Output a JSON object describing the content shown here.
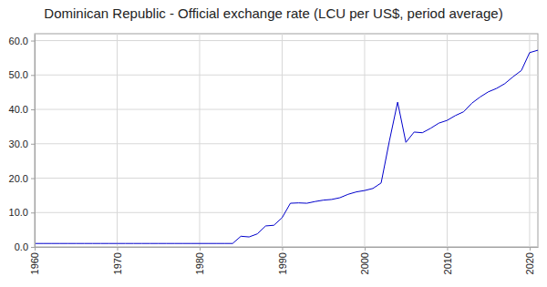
{
  "chart_data": {
    "type": "line",
    "title": "Dominican Republic - Official exchange rate (LCU per US$, period average)",
    "x": [
      1960,
      1961,
      1962,
      1963,
      1964,
      1965,
      1966,
      1967,
      1968,
      1969,
      1970,
      1971,
      1972,
      1973,
      1974,
      1975,
      1976,
      1977,
      1978,
      1979,
      1980,
      1981,
      1982,
      1983,
      1984,
      1985,
      1986,
      1987,
      1988,
      1989,
      1990,
      1991,
      1992,
      1993,
      1994,
      1995,
      1996,
      1997,
      1998,
      1999,
      2000,
      2001,
      2002,
      2003,
      2004,
      2005,
      2006,
      2007,
      2008,
      2009,
      2010,
      2011,
      2012,
      2013,
      2014,
      2015,
      2016,
      2017,
      2018,
      2019,
      2020,
      2021
    ],
    "values": [
      1.0,
      1.0,
      1.0,
      1.0,
      1.0,
      1.0,
      1.0,
      1.0,
      1.0,
      1.0,
      1.0,
      1.0,
      1.0,
      1.0,
      1.0,
      1.0,
      1.0,
      1.0,
      1.0,
      1.0,
      1.0,
      1.0,
      1.0,
      1.0,
      1.0,
      3.1,
      2.9,
      3.8,
      6.1,
      6.3,
      8.5,
      12.7,
      12.8,
      12.7,
      13.2,
      13.6,
      13.8,
      14.3,
      15.3,
      16.0,
      16.4,
      17.0,
      18.6,
      30.8,
      42.1,
      30.4,
      33.4,
      33.2,
      34.5,
      36.0,
      36.8,
      38.2,
      39.3,
      41.8,
      43.6,
      45.1,
      46.1,
      47.5,
      49.5,
      51.3,
      56.5,
      57.2
    ],
    "color": "#0000cc",
    "xlim": [
      1960,
      2021
    ],
    "xticks": [
      1960,
      1970,
      1980,
      1990,
      2000,
      2010,
      2020
    ],
    "ylim": [
      0,
      62
    ],
    "yticks": [
      {
        "value": 0,
        "label": "0.0"
      },
      {
        "value": 10,
        "label": "10.0"
      },
      {
        "value": 20,
        "label": "20.0"
      },
      {
        "value": 30,
        "label": "30.0"
      },
      {
        "value": 40,
        "label": "40.0"
      },
      {
        "value": 50,
        "label": "50.0"
      },
      {
        "value": 60,
        "label": "60.0"
      }
    ],
    "grid": true
  }
}
